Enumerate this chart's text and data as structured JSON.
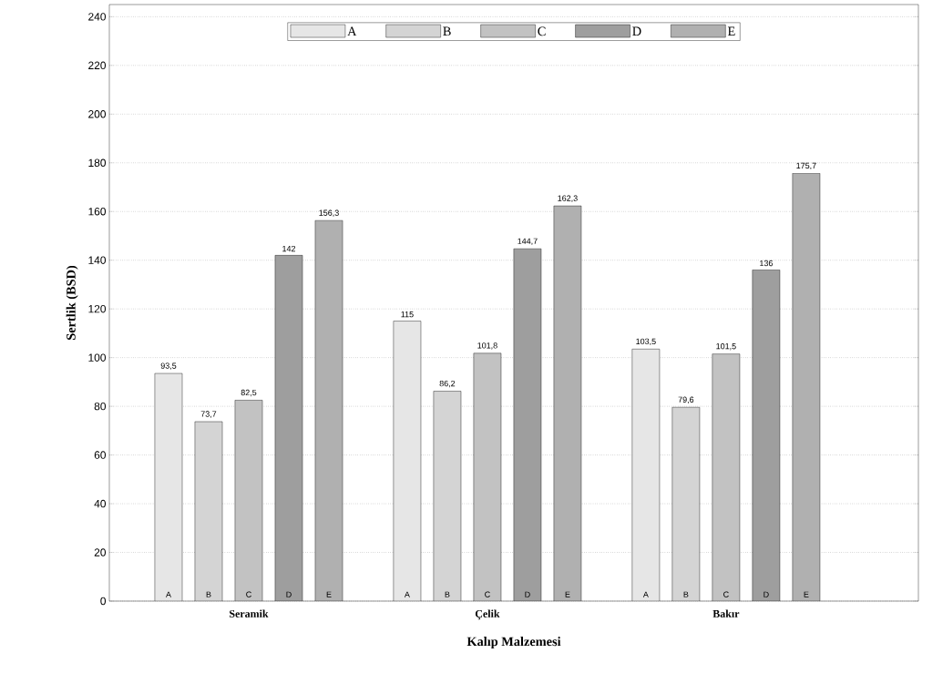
{
  "chart_data": {
    "type": "bar",
    "xlabel": "Kalıp Malzemesi",
    "ylabel": "Sertlik (BSD)",
    "categories": [
      "Seramik",
      "Çelik",
      "Bakır"
    ],
    "series": [
      {
        "name": "A",
        "color": "#e6e6e6",
        "values": [
          93.5,
          115,
          103.5
        ],
        "value_labels": [
          "93,5",
          "115",
          "103,5"
        ]
      },
      {
        "name": "B",
        "color": "#d4d4d4",
        "values": [
          73.7,
          86.2,
          79.6
        ],
        "value_labels": [
          "73,7",
          "86,2",
          "79,6"
        ]
      },
      {
        "name": "C",
        "color": "#c2c2c2",
        "values": [
          82.5,
          101.8,
          101.5
        ],
        "value_labels": [
          "82,5",
          "101,8",
          "101,5"
        ]
      },
      {
        "name": "D",
        "color": "#9e9e9e",
        "values": [
          142,
          144.7,
          136
        ],
        "value_labels": [
          "142",
          "144,7",
          "136"
        ]
      },
      {
        "name": "E",
        "color": "#b0b0b0",
        "values": [
          156.3,
          162.3,
          175.7
        ],
        "value_labels": [
          "156,3",
          "162,3",
          "175,7"
        ]
      }
    ],
    "ylim": [
      0,
      245
    ],
    "yticks": [
      0,
      20,
      40,
      60,
      80,
      100,
      120,
      140,
      160,
      180,
      200,
      220,
      240
    ],
    "grid": "y",
    "legend": "top"
  }
}
